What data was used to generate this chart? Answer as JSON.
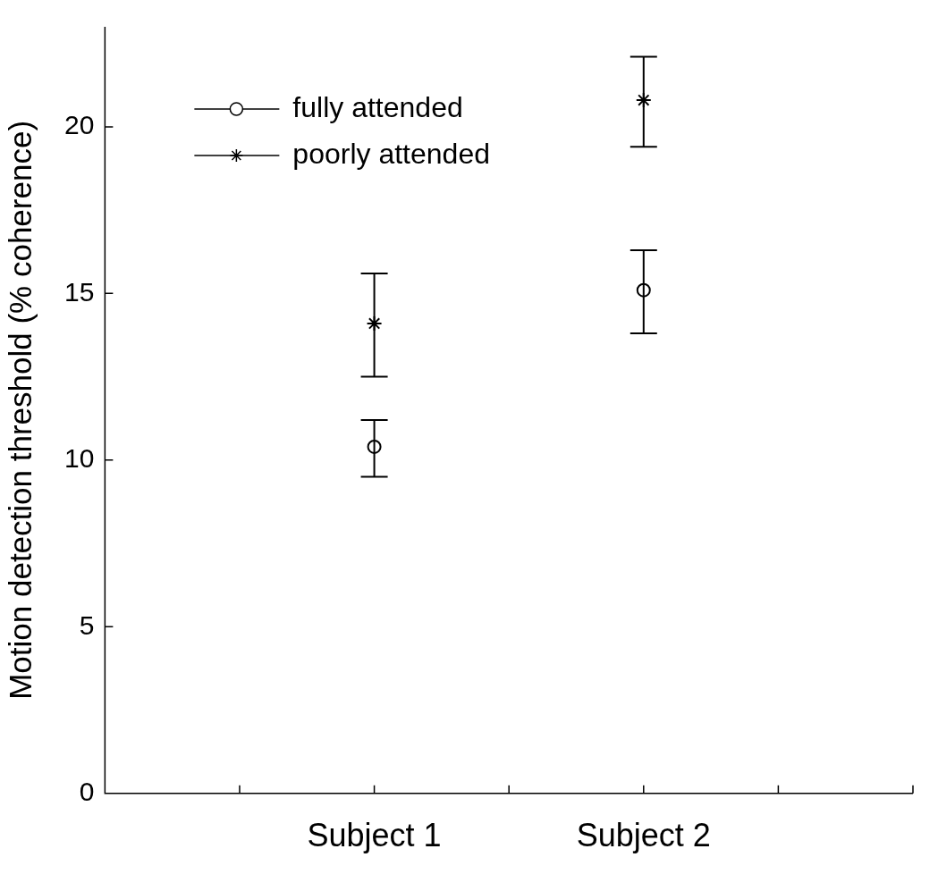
{
  "chart_data": {
    "type": "scatter",
    "ylabel": "Motion detection threshold (% coherence)",
    "categories": [
      null,
      null,
      "Subject 1",
      null,
      "Subject 2",
      null,
      null
    ],
    "ylim": [
      0,
      23
    ],
    "yticks": [
      0,
      5,
      10,
      15,
      20
    ],
    "legend": "top left",
    "grid": false,
    "series": [
      {
        "name": "fully attended",
        "color": "#000000",
        "marker": "circle",
        "values": [
          null,
          null,
          10.4,
          null,
          15.1,
          null,
          null
        ],
        "errors": [
          null,
          null,
          [
            9.5,
            11.2
          ],
          null,
          [
            13.8,
            16.3
          ],
          null,
          null
        ]
      },
      {
        "name": "poorly attended",
        "color": "#000000",
        "marker": "cross",
        "values": [
          null,
          null,
          14.1,
          null,
          20.8,
          null,
          null
        ],
        "errors": [
          null,
          null,
          [
            12.5,
            15.6
          ],
          null,
          [
            19.4,
            22.1
          ],
          null,
          null
        ]
      }
    ]
  }
}
